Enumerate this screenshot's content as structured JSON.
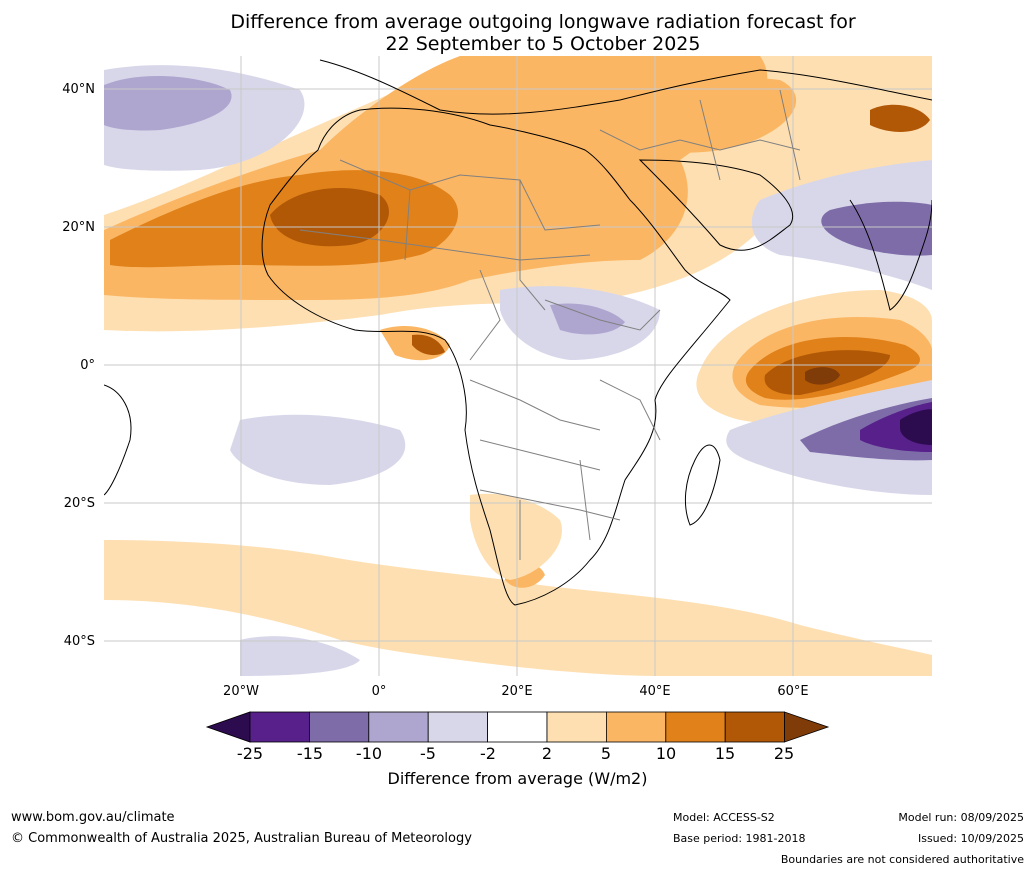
{
  "title_line1": "Difference from average outgoing longwave radiation forecast for",
  "title_line2": "22 September to 5 October 2025",
  "lat_labels": [
    "40°N",
    "20°N",
    "0°",
    "20°S",
    "40°S"
  ],
  "lon_labels": [
    "20°W",
    "0°",
    "20°E",
    "40°E",
    "60°E"
  ],
  "colorbar": {
    "ticks": [
      "-25",
      "-15",
      "-10",
      "-5",
      "-2",
      "2",
      "5",
      "10",
      "15",
      "25"
    ],
    "colors": [
      "#2c0b4e",
      "#57208a",
      "#7e6ca9",
      "#afa6cf",
      "#d8d7ea",
      "#ffffff",
      "#fedfb2",
      "#fbb663",
      "#e0811a",
      "#b15807",
      "#7f3b08"
    ],
    "label": "Difference from average (W/m2)"
  },
  "footer": {
    "website": "www.bom.gov.au/climate",
    "copyright": "© Commonwealth of Australia 2025, Australian Bureau of Meteorology",
    "model": "Model: ACCESS-S2",
    "base_period": "Base period: 1981-2018",
    "model_run": "Model run: 08/09/2025",
    "issued": "Issued: 10/09/2025",
    "disclaimer": "Boundaries are not considered authoritative"
  }
}
